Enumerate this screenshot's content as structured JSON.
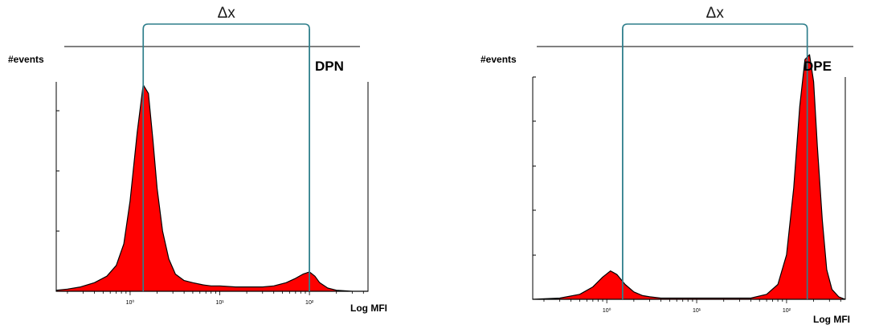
{
  "chart_data": [
    {
      "type": "area",
      "panel_label": "DPN",
      "ylabel": "#events",
      "xlabel": "Log MFI",
      "x_scale": "log",
      "x_tick_labels": [
        "10⁰",
        "10¹",
        "10²"
      ],
      "x_ticks": [
        1,
        10,
        100
      ],
      "xlim": [
        0.15,
        450
      ],
      "delta_label": "Δx",
      "gate_lines": [
        1.4,
        100
      ],
      "series": [
        {
          "color": "#ff0000",
          "x": [
            0.15,
            0.2,
            0.28,
            0.4,
            0.55,
            0.7,
            0.85,
            1.0,
            1.2,
            1.4,
            1.6,
            1.8,
            2.0,
            2.3,
            2.7,
            3.2,
            4.0,
            5.0,
            6.5,
            8,
            10,
            15,
            20,
            30,
            40,
            55,
            70,
            85,
            100,
            115,
            130,
            160,
            200,
            300,
            450
          ],
          "values": [
            0.5,
            1,
            2,
            4,
            7,
            12,
            22,
            42,
            74,
            96,
            92,
            70,
            48,
            28,
            15,
            8,
            5,
            4,
            3,
            2.5,
            2.5,
            2,
            2,
            2,
            2.5,
            4,
            6,
            8,
            9,
            7,
            4,
            1.5,
            0.5,
            0,
            0
          ]
        }
      ],
      "ylim": [
        0,
        100
      ]
    },
    {
      "type": "area",
      "panel_label": "DPE",
      "ylabel": "#events",
      "xlabel": "Log MFI",
      "x_scale": "log",
      "x_tick_labels": [
        "10⁰",
        "10¹",
        "10²"
      ],
      "x_ticks": [
        1,
        10,
        100
      ],
      "xlim": [
        0.15,
        450
      ],
      "delta_label": "Δx",
      "gate_lines": [
        1.5,
        170
      ],
      "series": [
        {
          "color": "#ff0000",
          "x": [
            0.15,
            0.3,
            0.5,
            0.7,
            0.9,
            1.1,
            1.3,
            1.6,
            2.0,
            2.5,
            3,
            4,
            5,
            7,
            10,
            20,
            40,
            60,
            80,
            100,
            120,
            140,
            160,
            180,
            200,
            220,
            250,
            280,
            320,
            380,
            450
          ],
          "values": [
            0,
            0.5,
            2,
            5,
            9,
            11.5,
            10,
            6,
            3,
            1.5,
            1,
            0.5,
            0.5,
            0.5,
            0.5,
            0.5,
            0.5,
            2,
            6,
            18,
            45,
            78,
            97,
            99,
            88,
            62,
            32,
            12,
            4,
            1,
            0
          ]
        }
      ],
      "ylim": [
        0,
        100
      ]
    }
  ]
}
